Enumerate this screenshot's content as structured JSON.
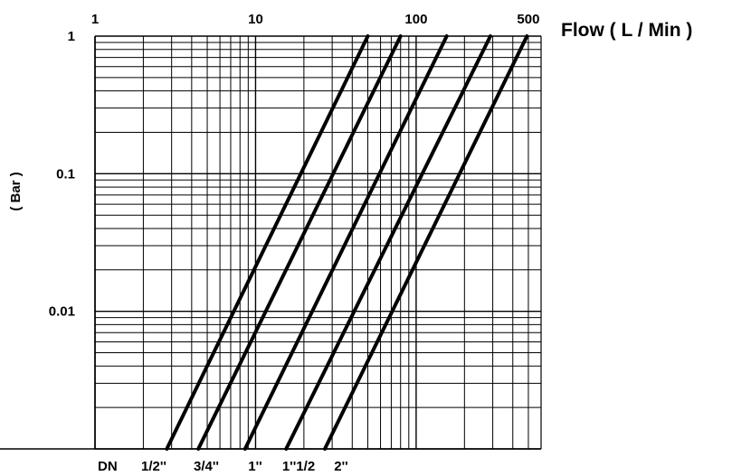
{
  "chart_data": {
    "type": "line",
    "title": "",
    "xlabel": "Flow ( L / Min )",
    "ylabel": "( Bar )",
    "x_scale": "log",
    "y_scale": "log",
    "xlim": [
      1,
      600
    ],
    "ylim": [
      0.001,
      1
    ],
    "x_tick_labels": [
      {
        "value": 1,
        "label": "1"
      },
      {
        "value": 10,
        "label": "10"
      },
      {
        "value": 100,
        "label": "100"
      },
      {
        "value": 500,
        "label": "500"
      }
    ],
    "y_tick_labels": [
      {
        "value": 1,
        "label": "1"
      },
      {
        "value": 0.1,
        "label": "0.1"
      },
      {
        "value": 0.01,
        "label": "0.01"
      }
    ],
    "grid": true,
    "series_label_prefix": "DN",
    "series": [
      {
        "name": "1/2''",
        "points": [
          [
            2.8,
            0.001
          ],
          [
            50,
            1
          ]
        ]
      },
      {
        "name": "3/4''",
        "points": [
          [
            4.4,
            0.001
          ],
          [
            80,
            1
          ]
        ]
      },
      {
        "name": "1''",
        "points": [
          [
            8.6,
            0.001
          ],
          [
            155,
            1
          ]
        ]
      },
      {
        "name": "1''1/2",
        "points": [
          [
            15.5,
            0.001
          ],
          [
            290,
            1
          ]
        ]
      },
      {
        "name": "2''",
        "points": [
          [
            27,
            0.001
          ],
          [
            490,
            1
          ]
        ]
      }
    ],
    "line_color": "#000000"
  }
}
